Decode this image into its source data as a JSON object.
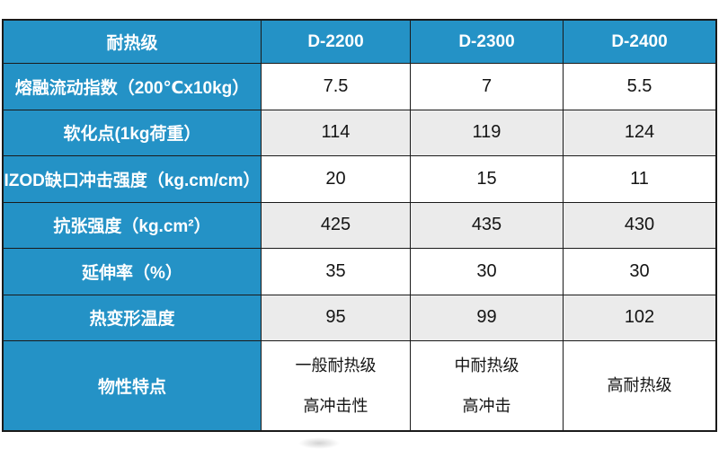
{
  "chart_data": {
    "type": "table",
    "title": "",
    "columns": [
      "耐热级",
      "D-2200",
      "D-2300",
      "D-2400"
    ],
    "rows": [
      [
        "熔融流动指数（200℃x10kg）",
        "7.5",
        "7",
        "5.5"
      ],
      [
        "软化点(1kg荷重）",
        "114",
        "119",
        "124"
      ],
      [
        "IZOD缺口冲击强度（kg.cm/cm）",
        "20",
        "15",
        "11"
      ],
      [
        "抗张强度（kg.cm²）",
        "425",
        "435",
        "430"
      ],
      [
        "延伸率（%）",
        "35",
        "30",
        "30"
      ],
      [
        "热变形温度",
        "95",
        "99",
        "102"
      ],
      [
        "物性特点",
        "一般耐热级\n高冲击性",
        "中耐热级\n高冲击",
        "高耐热级"
      ]
    ],
    "shaded_rows": [
      1,
      3,
      5
    ],
    "layout": {
      "header_fill": "#2492c6",
      "label_column_fill": "#2492c6",
      "shaded_fill": "#ebebeb",
      "border_color": "#1a1a1a",
      "header_text_color": "#ffffff",
      "value_text_color": "#141414",
      "grid": "on",
      "legend": "none"
    }
  }
}
